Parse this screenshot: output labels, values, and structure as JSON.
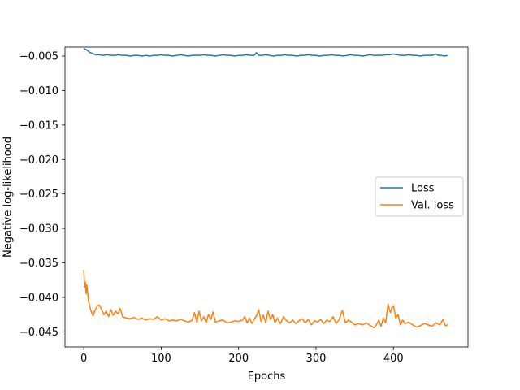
{
  "chart_data": {
    "type": "line",
    "title": "",
    "xlabel": "Epochs",
    "ylabel": "Negative log-likelihood",
    "xlim": [
      -24.3,
      496.3
    ],
    "ylim": [
      -0.0472,
      -0.0037
    ],
    "xticks": [
      0,
      100,
      200,
      300,
      400
    ],
    "yticks": [
      -0.045,
      -0.04,
      -0.035,
      -0.03,
      -0.025,
      -0.02,
      -0.015,
      -0.01,
      -0.005
    ],
    "grid": false,
    "legend_position": "center-right",
    "series": [
      {
        "name": "Loss",
        "color": "#1f77b4",
        "points": [
          [
            0,
            -0.0039
          ],
          [
            2,
            -0.004
          ],
          [
            5,
            -0.0042
          ],
          [
            8,
            -0.0045
          ],
          [
            11,
            -0.0046
          ],
          [
            15,
            -0.0048
          ],
          [
            20,
            -0.0048
          ],
          [
            25,
            -0.0049
          ],
          [
            30,
            -0.0048
          ],
          [
            35,
            -0.0049
          ],
          [
            40,
            -0.0049
          ],
          [
            45,
            -0.0048
          ],
          [
            50,
            -0.0049
          ],
          [
            55,
            -0.0049
          ],
          [
            60,
            -0.005
          ],
          [
            65,
            -0.0049
          ],
          [
            70,
            -0.0049
          ],
          [
            75,
            -0.005
          ],
          [
            80,
            -0.0049
          ],
          [
            85,
            -0.005
          ],
          [
            90,
            -0.0049
          ],
          [
            95,
            -0.0049
          ],
          [
            100,
            -0.0048
          ],
          [
            105,
            -0.0049
          ],
          [
            110,
            -0.0049
          ],
          [
            115,
            -0.005
          ],
          [
            120,
            -0.0049
          ],
          [
            125,
            -0.0048
          ],
          [
            130,
            -0.0049
          ],
          [
            135,
            -0.005
          ],
          [
            140,
            -0.0049
          ],
          [
            145,
            -0.0049
          ],
          [
            150,
            -0.0049
          ],
          [
            155,
            -0.0048
          ],
          [
            160,
            -0.0049
          ],
          [
            165,
            -0.0049
          ],
          [
            170,
            -0.005
          ],
          [
            175,
            -0.0049
          ],
          [
            180,
            -0.0048
          ],
          [
            185,
            -0.0049
          ],
          [
            190,
            -0.0049
          ],
          [
            195,
            -0.005
          ],
          [
            200,
            -0.0049
          ],
          [
            205,
            -0.0049
          ],
          [
            210,
            -0.0048
          ],
          [
            215,
            -0.0049
          ],
          [
            220,
            -0.0049
          ],
          [
            223,
            -0.0045
          ],
          [
            226,
            -0.0049
          ],
          [
            230,
            -0.0049
          ],
          [
            235,
            -0.0048
          ],
          [
            240,
            -0.0049
          ],
          [
            245,
            -0.005
          ],
          [
            250,
            -0.0049
          ],
          [
            255,
            -0.0049
          ],
          [
            260,
            -0.0048
          ],
          [
            265,
            -0.0049
          ],
          [
            270,
            -0.0049
          ],
          [
            275,
            -0.005
          ],
          [
            280,
            -0.0049
          ],
          [
            285,
            -0.0049
          ],
          [
            290,
            -0.0048
          ],
          [
            295,
            -0.0049
          ],
          [
            300,
            -0.0049
          ],
          [
            305,
            -0.005
          ],
          [
            310,
            -0.0049
          ],
          [
            315,
            -0.0049
          ],
          [
            320,
            -0.0048
          ],
          [
            325,
            -0.0049
          ],
          [
            330,
            -0.0049
          ],
          [
            335,
            -0.005
          ],
          [
            340,
            -0.0049
          ],
          [
            345,
            -0.0048
          ],
          [
            350,
            -0.0049
          ],
          [
            355,
            -0.0049
          ],
          [
            360,
            -0.005
          ],
          [
            365,
            -0.0049
          ],
          [
            370,
            -0.0048
          ],
          [
            375,
            -0.0049
          ],
          [
            380,
            -0.0049
          ],
          [
            385,
            -0.0049
          ],
          [
            390,
            -0.0048
          ],
          [
            395,
            -0.0048
          ],
          [
            400,
            -0.0047
          ],
          [
            405,
            -0.0048
          ],
          [
            410,
            -0.0049
          ],
          [
            415,
            -0.0049
          ],
          [
            420,
            -0.0048
          ],
          [
            425,
            -0.0049
          ],
          [
            430,
            -0.0049
          ],
          [
            435,
            -0.005
          ],
          [
            440,
            -0.0049
          ],
          [
            445,
            -0.0049
          ],
          [
            450,
            -0.0049
          ],
          [
            455,
            -0.0047
          ],
          [
            458,
            -0.0049
          ],
          [
            462,
            -0.0049
          ],
          [
            466,
            -0.005
          ],
          [
            470,
            -0.0049
          ]
        ]
      },
      {
        "name": "Val. loss",
        "color": "#ff7f0e",
        "points": [
          [
            0,
            -0.036
          ],
          [
            1,
            -0.0385
          ],
          [
            2,
            -0.0378
          ],
          [
            3,
            -0.0395
          ],
          [
            4,
            -0.0382
          ],
          [
            6,
            -0.0405
          ],
          [
            8,
            -0.0415
          ],
          [
            10,
            -0.0422
          ],
          [
            12,
            -0.0427
          ],
          [
            14,
            -0.042
          ],
          [
            17,
            -0.0413
          ],
          [
            20,
            -0.0411
          ],
          [
            23,
            -0.0418
          ],
          [
            26,
            -0.0425
          ],
          [
            29,
            -0.042
          ],
          [
            32,
            -0.0428
          ],
          [
            35,
            -0.0418
          ],
          [
            38,
            -0.0426
          ],
          [
            41,
            -0.042
          ],
          [
            44,
            -0.0424
          ],
          [
            47,
            -0.0416
          ],
          [
            50,
            -0.0428
          ],
          [
            55,
            -0.043
          ],
          [
            60,
            -0.0431
          ],
          [
            65,
            -0.0429
          ],
          [
            70,
            -0.0432
          ],
          [
            75,
            -0.043
          ],
          [
            80,
            -0.0433
          ],
          [
            85,
            -0.0431
          ],
          [
            90,
            -0.0432
          ],
          [
            95,
            -0.0428
          ],
          [
            100,
            -0.0433
          ],
          [
            105,
            -0.0431
          ],
          [
            110,
            -0.0434
          ],
          [
            115,
            -0.0433
          ],
          [
            120,
            -0.0434
          ],
          [
            125,
            -0.0432
          ],
          [
            130,
            -0.0434
          ],
          [
            135,
            -0.0436
          ],
          [
            140,
            -0.0433
          ],
          [
            143,
            -0.0422
          ],
          [
            146,
            -0.0436
          ],
          [
            149,
            -0.042
          ],
          [
            152,
            -0.0434
          ],
          [
            155,
            -0.0428
          ],
          [
            158,
            -0.0437
          ],
          [
            161,
            -0.0425
          ],
          [
            164,
            -0.0432
          ],
          [
            167,
            -0.0421
          ],
          [
            170,
            -0.0436
          ],
          [
            175,
            -0.0434
          ],
          [
            180,
            -0.0433
          ],
          [
            185,
            -0.0437
          ],
          [
            190,
            -0.0436
          ],
          [
            195,
            -0.0434
          ],
          [
            200,
            -0.0435
          ],
          [
            205,
            -0.0433
          ],
          [
            208,
            -0.0428
          ],
          [
            211,
            -0.0437
          ],
          [
            214,
            -0.043
          ],
          [
            217,
            -0.0438
          ],
          [
            220,
            -0.0432
          ],
          [
            223,
            -0.0427
          ],
          [
            226,
            -0.0418
          ],
          [
            229,
            -0.0435
          ],
          [
            232,
            -0.0426
          ],
          [
            235,
            -0.0437
          ],
          [
            238,
            -0.042
          ],
          [
            241,
            -0.0432
          ],
          [
            244,
            -0.0425
          ],
          [
            247,
            -0.0437
          ],
          [
            250,
            -0.043
          ],
          [
            254,
            -0.0438
          ],
          [
            258,
            -0.0428
          ],
          [
            262,
            -0.0434
          ],
          [
            266,
            -0.0437
          ],
          [
            270,
            -0.0433
          ],
          [
            274,
            -0.0438
          ],
          [
            278,
            -0.0434
          ],
          [
            282,
            -0.0431
          ],
          [
            286,
            -0.0437
          ],
          [
            290,
            -0.0432
          ],
          [
            294,
            -0.044
          ],
          [
            298,
            -0.0434
          ],
          [
            302,
            -0.0436
          ],
          [
            306,
            -0.0432
          ],
          [
            310,
            -0.0438
          ],
          [
            314,
            -0.0433
          ],
          [
            318,
            -0.0435
          ],
          [
            322,
            -0.0428
          ],
          [
            326,
            -0.0438
          ],
          [
            330,
            -0.0432
          ],
          [
            334,
            -0.0419
          ],
          [
            338,
            -0.0437
          ],
          [
            342,
            -0.0433
          ],
          [
            346,
            -0.0436
          ],
          [
            350,
            -0.044
          ],
          [
            355,
            -0.0438
          ],
          [
            360,
            -0.044
          ],
          [
            365,
            -0.0437
          ],
          [
            370,
            -0.0441
          ],
          [
            375,
            -0.0444
          ],
          [
            378,
            -0.044
          ],
          [
            381,
            -0.0433
          ],
          [
            384,
            -0.0442
          ],
          [
            387,
            -0.043
          ],
          [
            390,
            -0.0437
          ],
          [
            393,
            -0.041
          ],
          [
            396,
            -0.0422
          ],
          [
            398,
            -0.0415
          ],
          [
            400,
            -0.0412
          ],
          [
            403,
            -0.043
          ],
          [
            406,
            -0.0425
          ],
          [
            409,
            -0.044
          ],
          [
            412,
            -0.0433
          ],
          [
            415,
            -0.0438
          ],
          [
            420,
            -0.0436
          ],
          [
            425,
            -0.044
          ],
          [
            430,
            -0.0443
          ],
          [
            435,
            -0.0441
          ],
          [
            440,
            -0.0438
          ],
          [
            445,
            -0.044
          ],
          [
            450,
            -0.0442
          ],
          [
            455,
            -0.0437
          ],
          [
            460,
            -0.044
          ],
          [
            464,
            -0.0432
          ],
          [
            467,
            -0.0441
          ],
          [
            470,
            -0.044
          ]
        ]
      }
    ]
  }
}
